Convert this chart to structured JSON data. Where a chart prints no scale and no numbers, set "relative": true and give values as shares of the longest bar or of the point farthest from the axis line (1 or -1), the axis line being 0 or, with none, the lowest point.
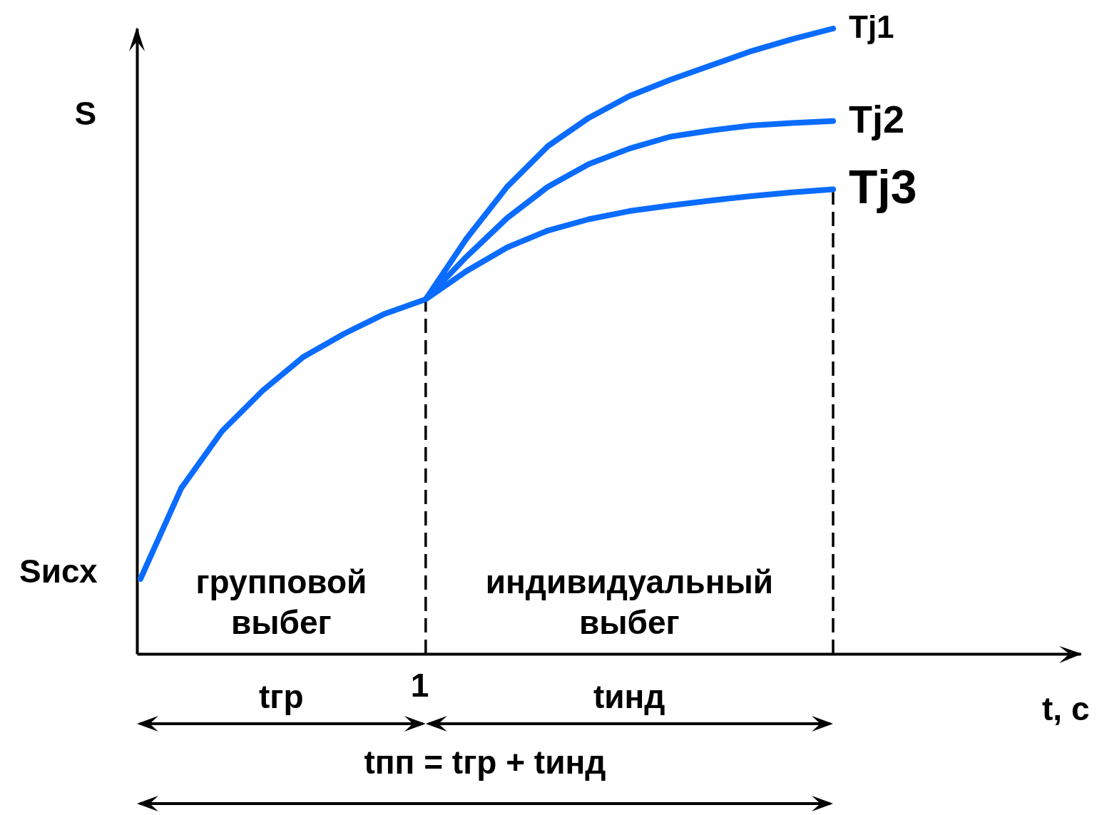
{
  "chart_data": {
    "type": "line",
    "relative": true,
    "ylabel": "S",
    "grid": false,
    "legend": false,
    "line_style": "solid",
    "marker": "none",
    "categories": [
      null,
      null,
      null,
      null,
      null,
      null,
      null,
      null,
      null,
      null,
      null,
      null,
      null,
      null,
      null,
      null,
      null,
      null
    ],
    "series": [
      {
        "name": "Tj1",
        "color": "#0a6cff",
        "values": [
          0.12,
          0.265,
          0.356,
          0.421,
          0.475,
          0.512,
          0.544,
          0.567,
          0.664,
          0.747,
          0.812,
          0.857,
          0.892,
          0.918,
          0.941,
          0.964,
          0.983,
          1
        ]
      },
      {
        "name": "Tj2",
        "color": "#0a6cff",
        "values": [
          null,
          null,
          null,
          null,
          null,
          null,
          null,
          0.567,
          0.635,
          0.697,
          0.747,
          0.783,
          0.808,
          0.827,
          0.837,
          0.845,
          0.849,
          0.852
        ]
      },
      {
        "name": "Tj3",
        "color": "#0a6cff",
        "values": [
          null,
          null,
          null,
          null,
          null,
          null,
          null,
          0.567,
          0.612,
          0.65,
          0.677,
          0.695,
          0.708,
          0.717,
          0.725,
          0.732,
          0.738,
          0.743
        ]
      }
    ],
    "annotations": [
      "1",
      "Sисх",
      "групповой выбег",
      "индивидуальный выбег",
      "tгр",
      "tинд",
      "tпп = tгр + tинд",
      "t, с"
    ]
  }
}
